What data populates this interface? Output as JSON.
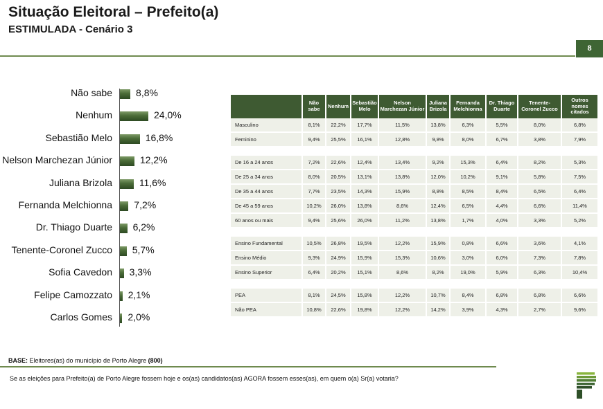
{
  "header": {
    "title": "Situação Eleitoral – Prefeito(a)",
    "subtitle": "ESTIMULADA - Cenário 3",
    "page_number": "8"
  },
  "chart_data": {
    "type": "bar",
    "orientation": "horizontal",
    "categories": [
      "Não sabe",
      "Nenhum",
      "Sebastião Melo",
      "Nelson Marchezan Júnior",
      "Juliana Brizola",
      "Fernanda Melchionna",
      "Dr. Thiago Duarte",
      "Tenente-Coronel Zucco",
      "Sofia Cavedon",
      "Felipe Camozzato",
      "Carlos Gomes"
    ],
    "values": [
      8.8,
      24.0,
      16.8,
      12.2,
      11.6,
      7.2,
      6.2,
      5.7,
      3.3,
      2.1,
      2.0
    ],
    "value_labels": [
      "8,8%",
      "24,0%",
      "16,8%",
      "12,2%",
      "11,6%",
      "7,2%",
      "6,2%",
      "5,7%",
      "3,3%",
      "2,1%",
      "2,0%"
    ],
    "xlim": [
      0,
      25
    ],
    "colors": {
      "bar": "#3e5a32"
    }
  },
  "table": {
    "headers": [
      "",
      "Não sabe",
      "Nenhum",
      "Sebastião Melo",
      "Nelson Marchezan Júnior",
      "Juliana Brizola",
      "Fernanda Melchionna",
      "Dr. Thiago Duarte",
      "Tenente-Coronel Zucco",
      "Outros nomes citados"
    ],
    "groups": [
      [
        [
          "Masculino",
          "8,1%",
          "22,2%",
          "17,7%",
          "11,5%",
          "13,8%",
          "6,3%",
          "5,5%",
          "8,0%",
          "6,8%"
        ],
        [
          "Feminino",
          "9,4%",
          "25,5%",
          "16,1%",
          "12,8%",
          "9,8%",
          "8,0%",
          "6,7%",
          "3,8%",
          "7,9%"
        ]
      ],
      [
        [
          "De 16 a 24 anos",
          "7,2%",
          "22,6%",
          "12,4%",
          "13,4%",
          "9,2%",
          "15,3%",
          "6,4%",
          "8,2%",
          "5,3%"
        ],
        [
          "De 25 a 34 anos",
          "8,0%",
          "20,5%",
          "13,1%",
          "13,8%",
          "12,0%",
          "10,2%",
          "9,1%",
          "5,8%",
          "7,5%"
        ],
        [
          "De 35 a 44 anos",
          "7,7%",
          "23,5%",
          "14,3%",
          "15,9%",
          "8,8%",
          "8,5%",
          "8,4%",
          "6,5%",
          "6,4%"
        ],
        [
          "De 45 a 59 anos",
          "10,2%",
          "26,0%",
          "13,8%",
          "8,6%",
          "12,4%",
          "6,5%",
          "4,4%",
          "6,6%",
          "11,4%"
        ],
        [
          "60 anos ou mais",
          "9,4%",
          "25,6%",
          "26,0%",
          "11,2%",
          "13,8%",
          "1,7%",
          "4,0%",
          "3,3%",
          "5,2%"
        ]
      ],
      [
        [
          "Ensino Fundamental",
          "10,5%",
          "26,8%",
          "19,5%",
          "12,2%",
          "15,9%",
          "0,8%",
          "6,6%",
          "3,6%",
          "4,1%"
        ],
        [
          "Ensino Médio",
          "9,3%",
          "24,9%",
          "15,9%",
          "15,3%",
          "10,6%",
          "3,0%",
          "6,0%",
          "7,3%",
          "7,8%"
        ],
        [
          "Ensino Superior",
          "6,4%",
          "20,2%",
          "15,1%",
          "8,6%",
          "8,2%",
          "19,0%",
          "5,9%",
          "6,3%",
          "10,4%"
        ]
      ],
      [
        [
          "PEA",
          "8,1%",
          "24,5%",
          "15,8%",
          "12,2%",
          "10,7%",
          "8,4%",
          "6,8%",
          "6,8%",
          "6,6%"
        ],
        [
          "Não PEA",
          "10,8%",
          "22,6%",
          "19,8%",
          "12,2%",
          "14,2%",
          "3,9%",
          "4,3%",
          "2,7%",
          "9,6%"
        ]
      ]
    ]
  },
  "footer": {
    "base_label": "BASE:",
    "base_text": " Eleitores(as) do município de Porto Alegre ",
    "base_n": "(800)",
    "question": "Se as eleições para Prefeito(a) de Porto Alegre fossem hoje e os(as) candidatos(as) AGORA fossem esses(as), em quem o(a) Sr(a) votaria?"
  },
  "logo": {
    "icon": "striped-p-logo-icon",
    "colors": [
      "#3e6534",
      "#8ab53e"
    ]
  }
}
